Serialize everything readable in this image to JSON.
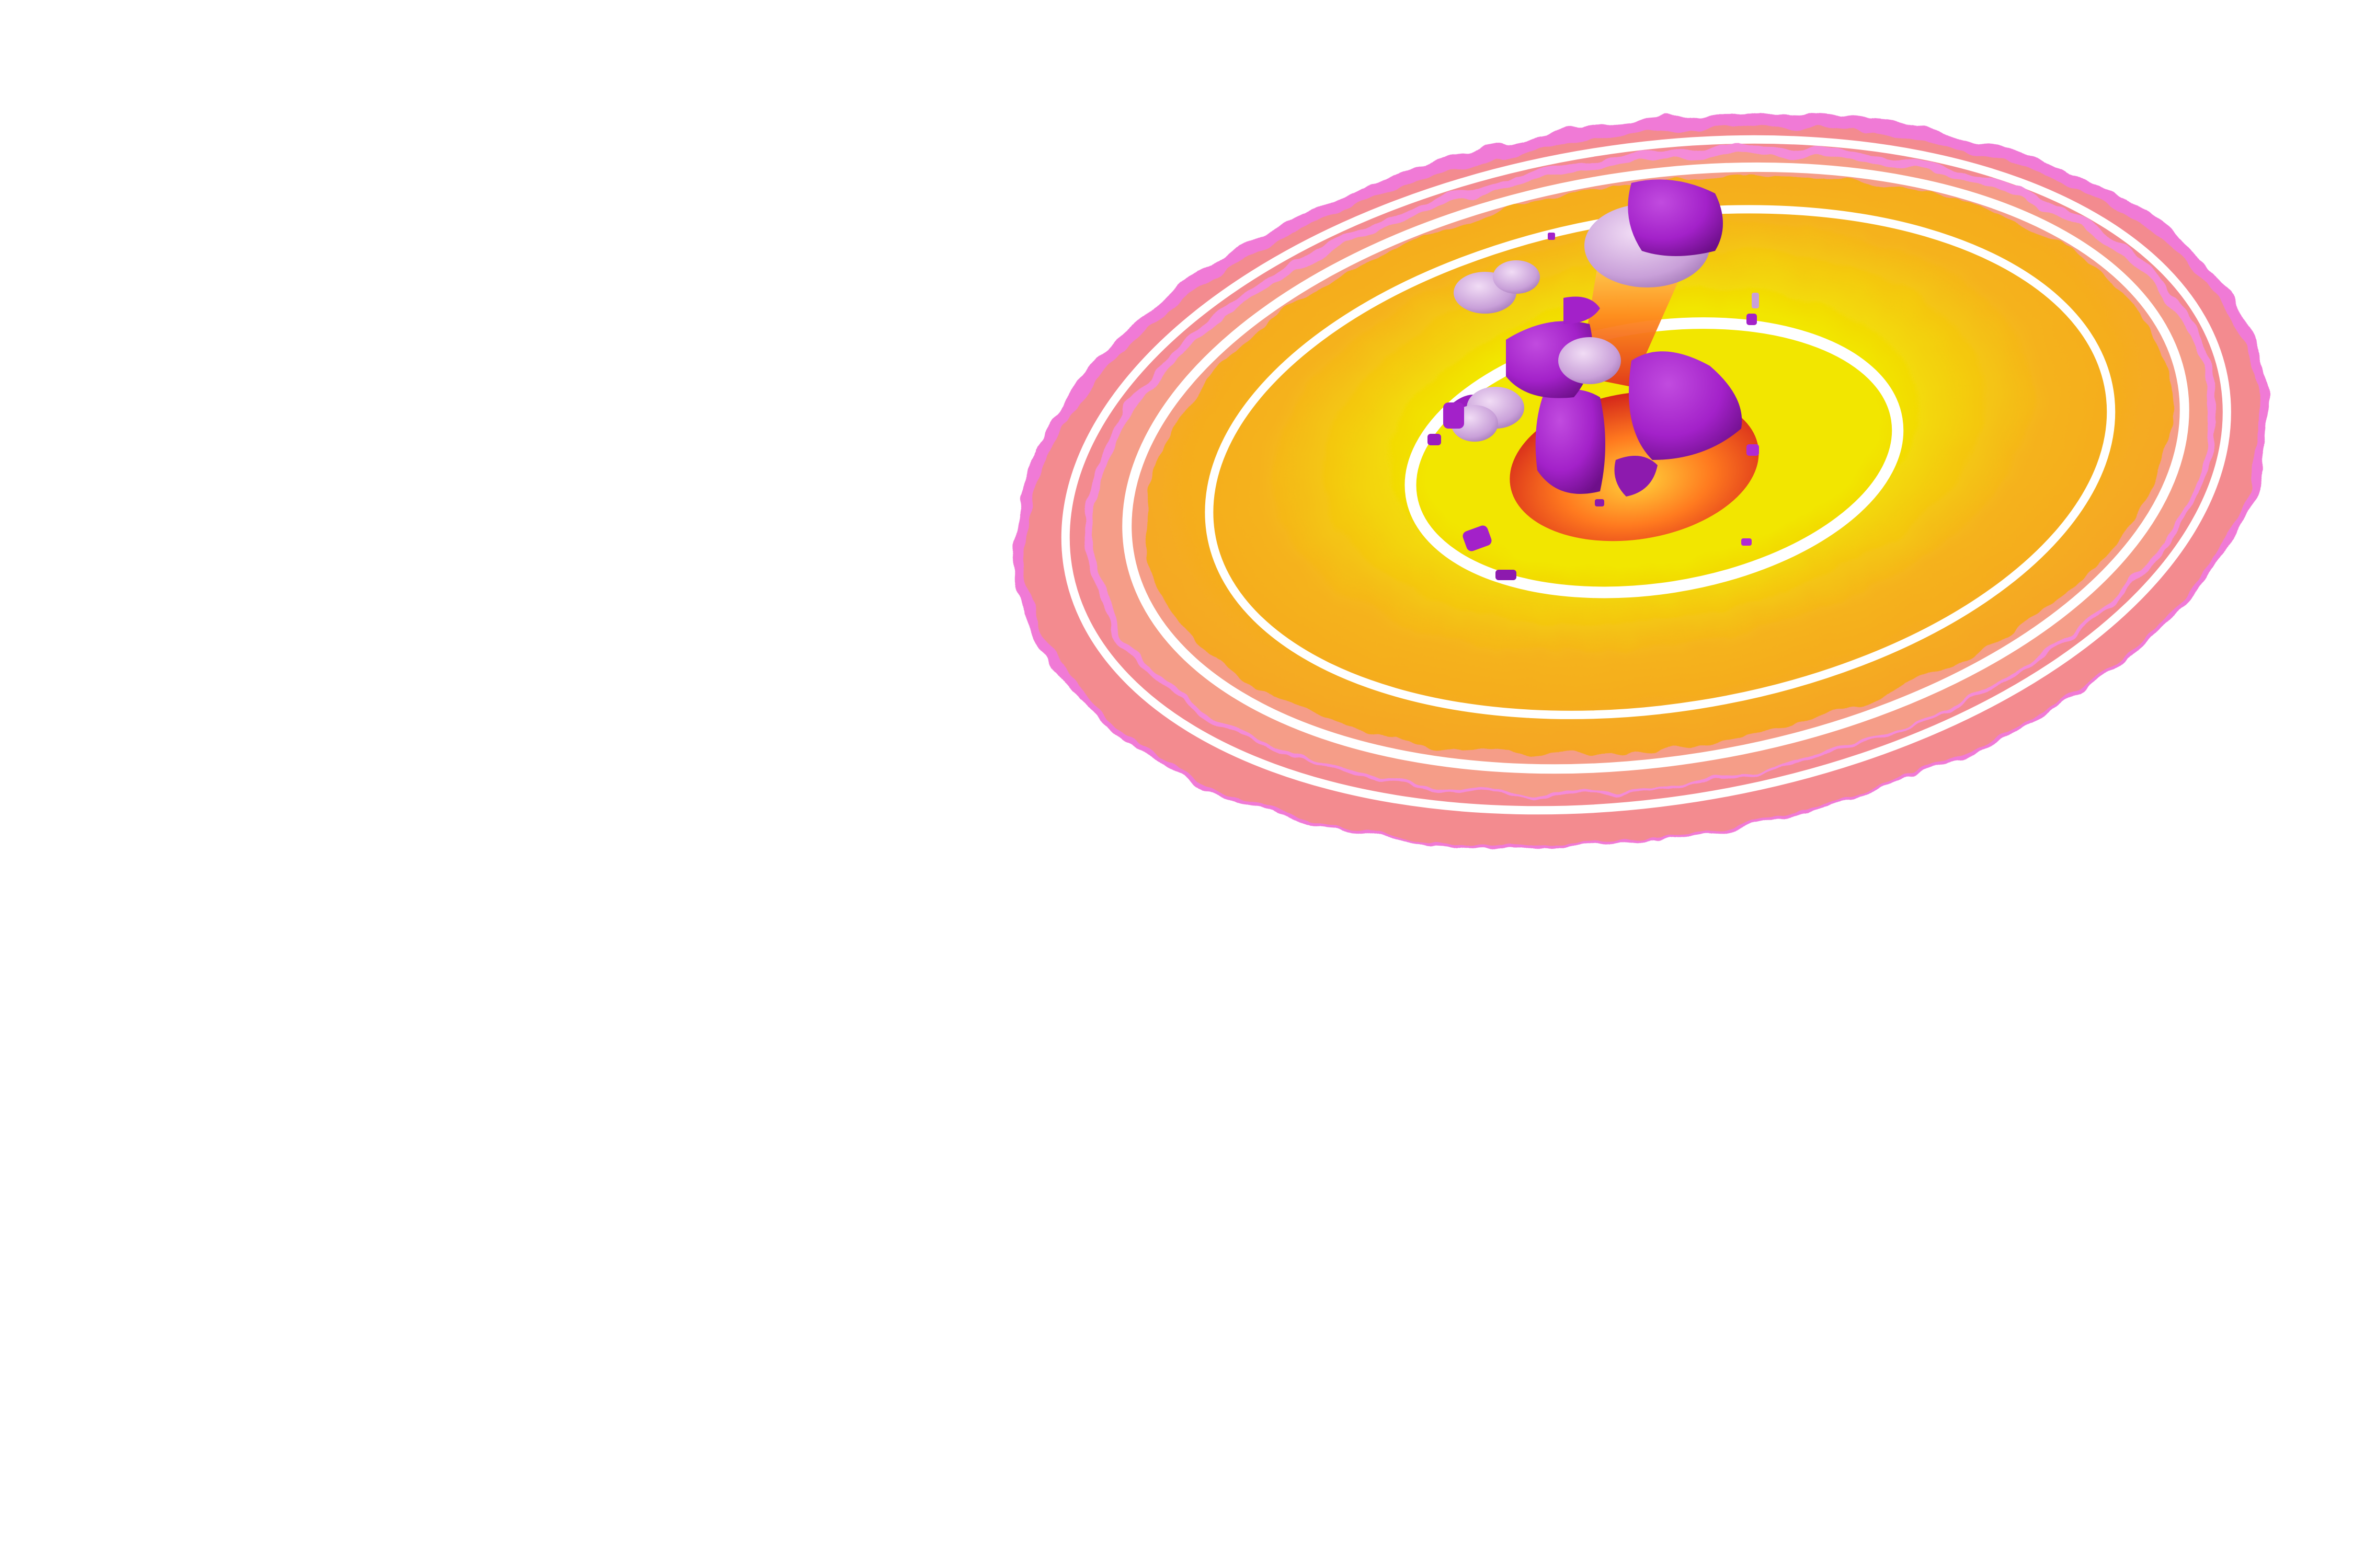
{
  "scene": {
    "background_color": "#ffffff",
    "colors": {
      "outer_ring_pink": "#f07ad6",
      "outer_ring_orange": "#f7a03a",
      "inner_disc_yellow": "#f2e600",
      "inner_disc_orange": "#f5a623",
      "white_rings": "#ffffff",
      "lava_glow": "#ff5a1f",
      "rock_purple": "#a321c9",
      "rock_dark_purple": "#7a1296",
      "rock_highlight": "#cfa6e0"
    }
  }
}
